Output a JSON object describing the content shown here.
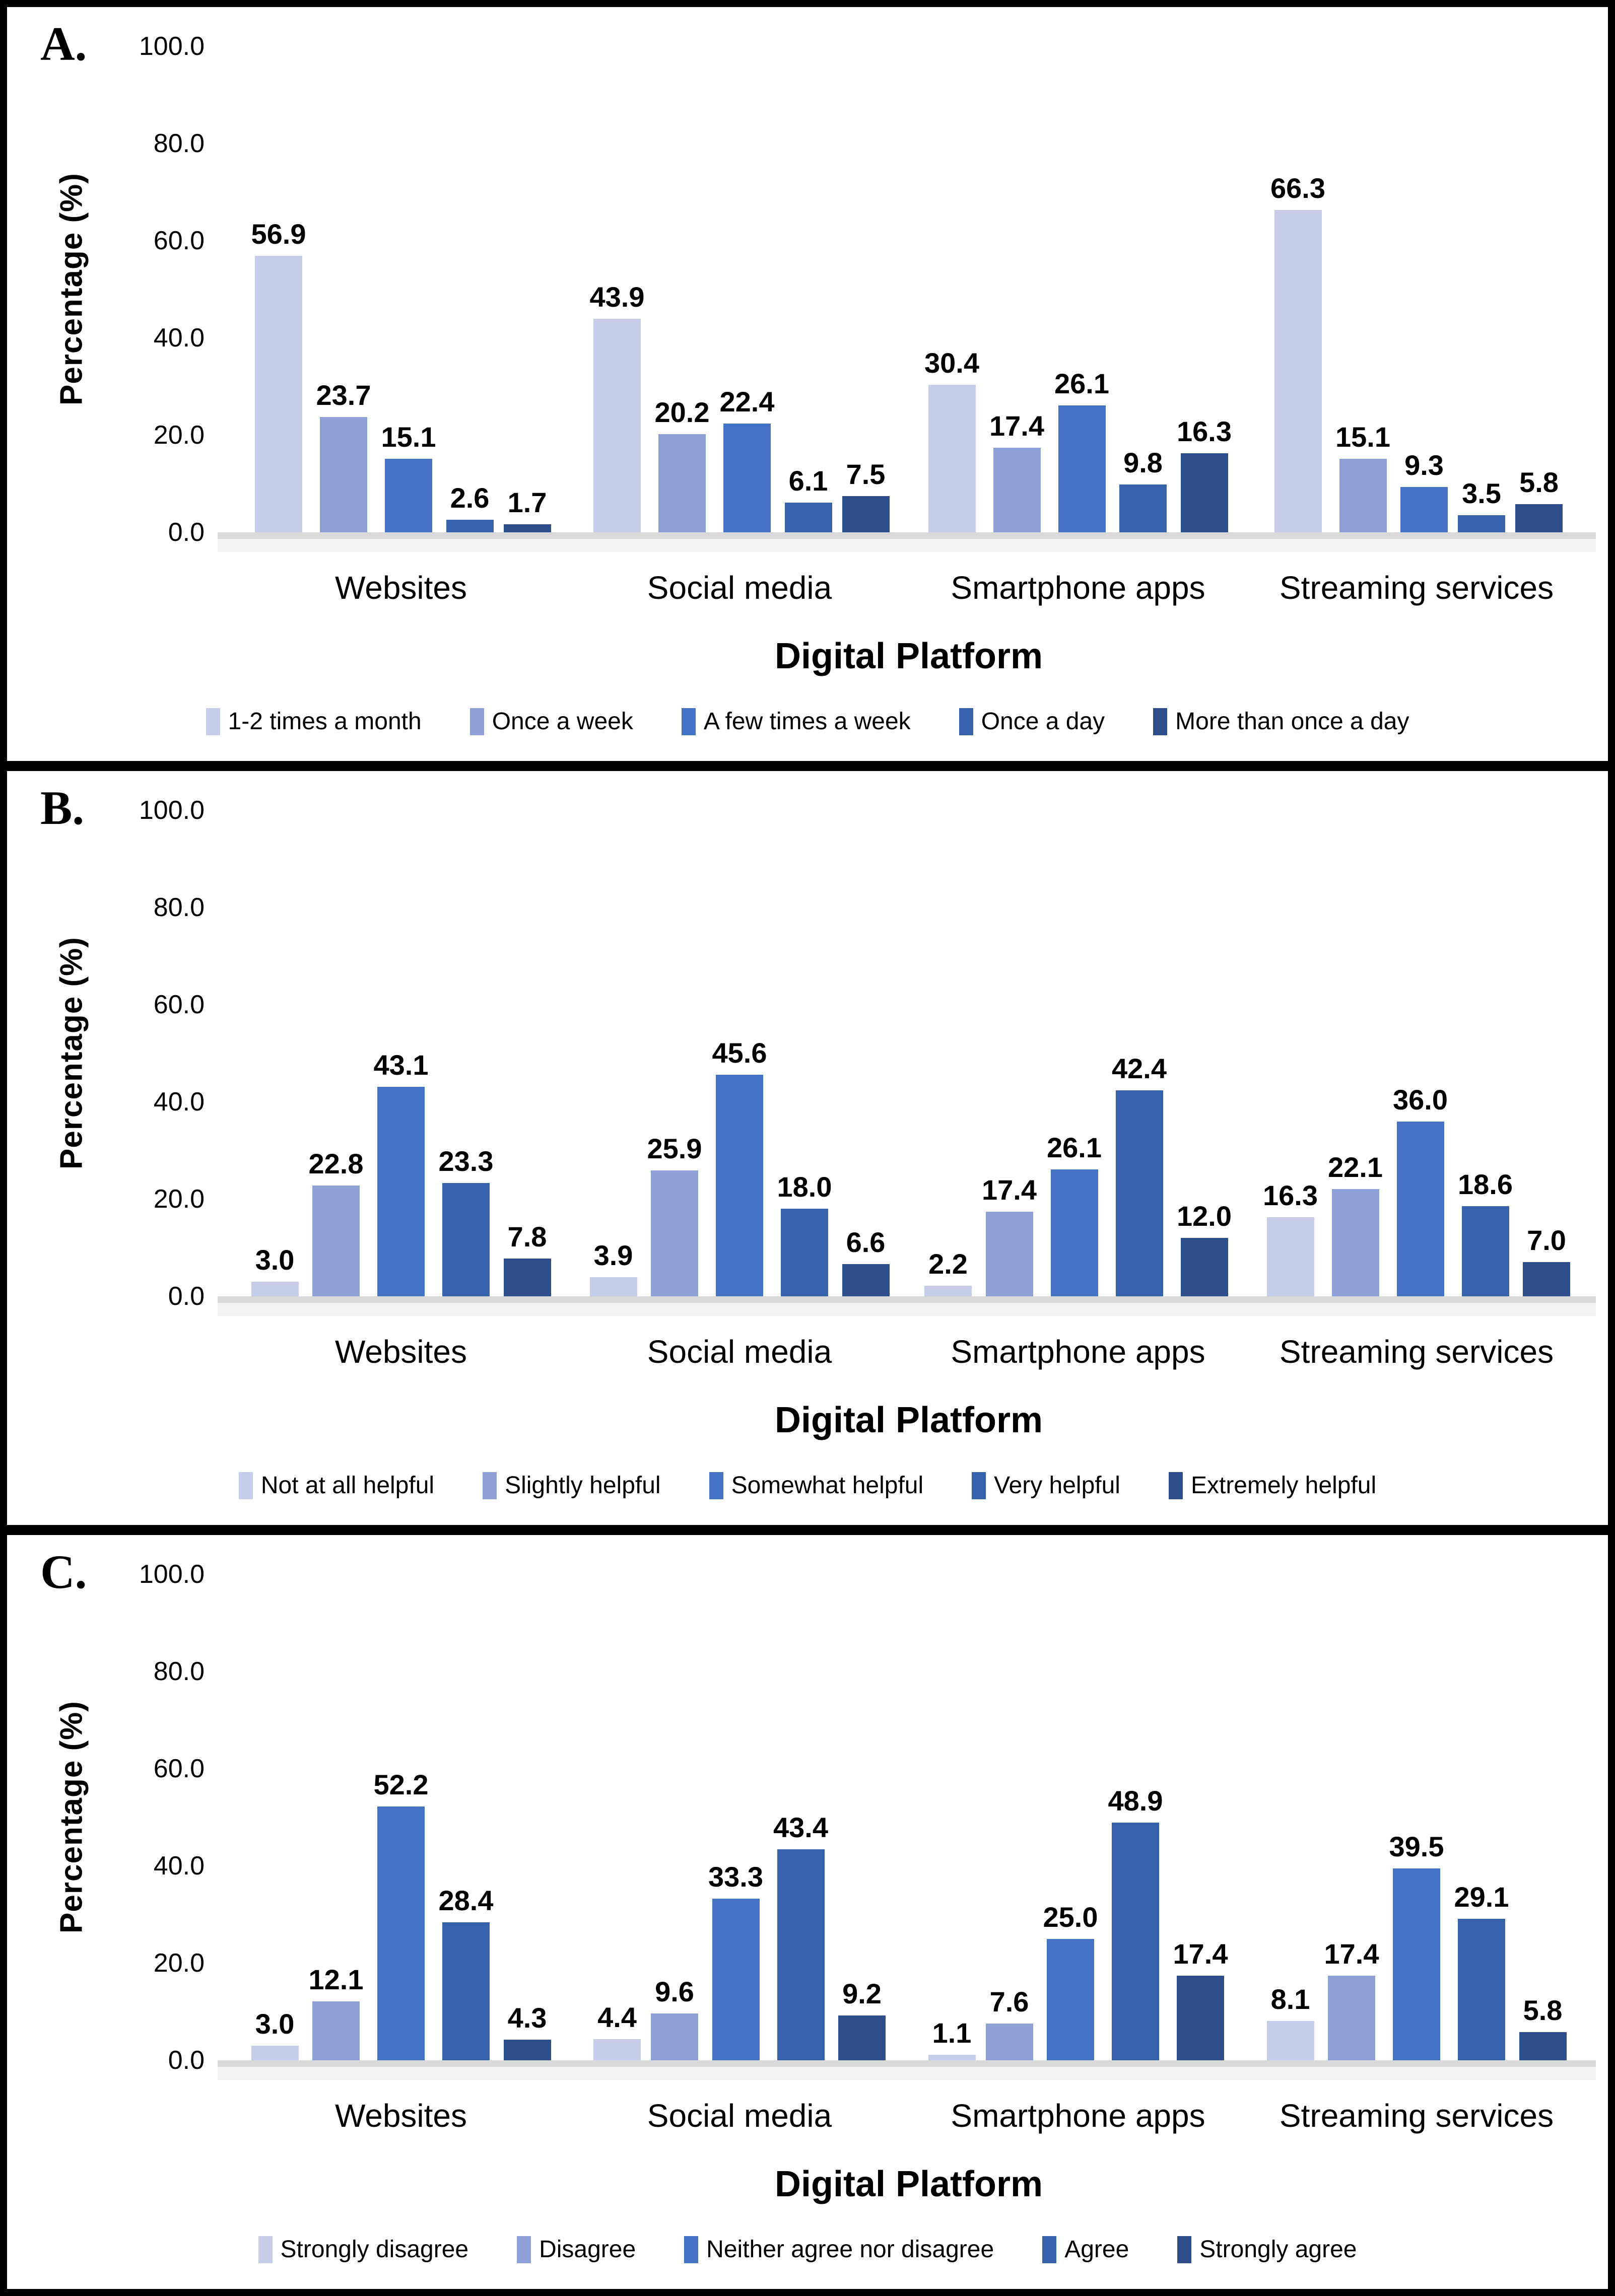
{
  "figure": {
    "background": "#FFFFFF",
    "border_color": "#000000",
    "axis_line_color": "#D9D9D9",
    "series_palette": [
      "#C5CDE8",
      "#8FA0D6",
      "#4472C4",
      "#3562AB",
      "#2E4D8C"
    ]
  },
  "chart_data": [
    {
      "type": "bar",
      "panel_label": "A.",
      "xlabel": "Digital Platform",
      "ylabel": "Percentage (%)",
      "ylim": [
        0,
        100
      ],
      "y_ticks": [
        100.0,
        80.0,
        60.0,
        40.0,
        20.0,
        0.0
      ],
      "grid": false,
      "legend_position": "bottom",
      "categories": [
        "Websites",
        "Social media",
        "Smartphone apps",
        "Streaming services"
      ],
      "series": [
        {
          "name": "1-2 times a month",
          "color": "#C5CDE8",
          "values": [
            56.9,
            43.9,
            30.4,
            66.3
          ]
        },
        {
          "name": "Once a week",
          "color": "#8FA0D6",
          "values": [
            23.7,
            20.2,
            17.4,
            15.1
          ]
        },
        {
          "name": "A few times a week",
          "color": "#4472C4",
          "values": [
            15.1,
            22.4,
            26.1,
            9.3
          ]
        },
        {
          "name": "Once a day",
          "color": "#3562AB",
          "values": [
            2.6,
            6.1,
            9.8,
            3.5
          ]
        },
        {
          "name": "More than once a day",
          "color": "#2E4D8C",
          "values": [
            1.7,
            7.5,
            16.3,
            5.8
          ]
        }
      ]
    },
    {
      "type": "bar",
      "panel_label": "B.",
      "xlabel": "Digital Platform",
      "ylabel": "Percentage (%)",
      "ylim": [
        0,
        100
      ],
      "y_ticks": [
        100.0,
        80.0,
        60.0,
        40.0,
        20.0,
        0.0
      ],
      "grid": false,
      "legend_position": "bottom",
      "categories": [
        "Websites",
        "Social media",
        "Smartphone apps",
        "Streaming services"
      ],
      "series": [
        {
          "name": "Not at all helpful",
          "color": "#C5CDE8",
          "values": [
            3.0,
            3.9,
            2.2,
            16.3
          ]
        },
        {
          "name": "Slightly helpful",
          "color": "#8FA0D6",
          "values": [
            22.8,
            25.9,
            17.4,
            22.1
          ]
        },
        {
          "name": "Somewhat helpful",
          "color": "#4472C4",
          "values": [
            43.1,
            45.6,
            26.1,
            36.0
          ]
        },
        {
          "name": "Very helpful",
          "color": "#3562AB",
          "values": [
            23.3,
            18.0,
            42.4,
            18.6
          ]
        },
        {
          "name": "Extremely helpful",
          "color": "#2E4D8C",
          "values": [
            7.8,
            6.6,
            12.0,
            7.0
          ]
        }
      ]
    },
    {
      "type": "bar",
      "panel_label": "C.",
      "xlabel": "Digital Platform",
      "ylabel": "Percentage (%)",
      "ylim": [
        0,
        100
      ],
      "y_ticks": [
        100.0,
        80.0,
        60.0,
        40.0,
        20.0,
        0.0
      ],
      "grid": false,
      "legend_position": "bottom",
      "categories": [
        "Websites",
        "Social media",
        "Smartphone apps",
        "Streaming services"
      ],
      "series": [
        {
          "name": "Strongly disagree",
          "color": "#C5CDE8",
          "values": [
            3.0,
            4.4,
            1.1,
            8.1
          ]
        },
        {
          "name": "Disagree",
          "color": "#8FA0D6",
          "values": [
            12.1,
            9.6,
            7.6,
            17.4
          ]
        },
        {
          "name": "Neither agree nor disagree",
          "color": "#4472C4",
          "values": [
            52.2,
            33.3,
            25.0,
            39.5
          ]
        },
        {
          "name": "Agree",
          "color": "#3562AB",
          "values": [
            28.4,
            43.4,
            48.9,
            29.1
          ]
        },
        {
          "name": "Strongly agree",
          "color": "#2E4D8C",
          "values": [
            4.3,
            9.2,
            17.4,
            5.8
          ]
        }
      ]
    }
  ]
}
